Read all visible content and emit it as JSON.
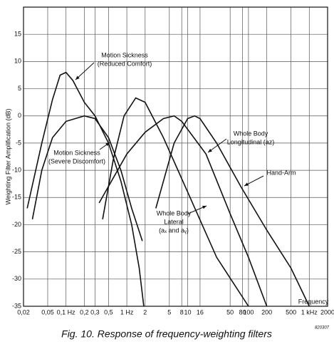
{
  "chart_data": {
    "type": "line",
    "xscale": "log",
    "xlabel": "Frequency",
    "ylabel": "Weighting Filter Amplification (dB)",
    "caption": "Fig. 10. Response of frequency-weighting filters",
    "code": "820307",
    "xlim": [
      0.02,
      2000
    ],
    "ylim": [
      -35,
      20
    ],
    "grid": true,
    "xticks": [
      {
        "value": 0.02,
        "label": "0,02"
      },
      {
        "value": 0.05,
        "label": "0,05"
      },
      {
        "value": 0.1,
        "label": "0,1 Hz"
      },
      {
        "value": 0.2,
        "label": "0,2"
      },
      {
        "value": 0.3,
        "label": "0,3"
      },
      {
        "value": 0.5,
        "label": "0,5"
      },
      {
        "value": 1,
        "label": "1 Hz"
      },
      2,
      5,
      8,
      10,
      16,
      50,
      80,
      100,
      200,
      500,
      {
        "value": 1000,
        "label": "1 kHz"
      },
      2000
    ],
    "yticks": [
      -35,
      -30,
      -25,
      -20,
      -15,
      -10,
      -5,
      0,
      5,
      10,
      15
    ],
    "series": [
      {
        "label": [
          "Motion Sickness",
          "(Reduced Comfort)"
        ],
        "color": "#111111",
        "x": [
          0.023,
          0.04,
          0.06,
          0.08,
          0.1,
          0.13,
          0.2,
          0.3,
          0.5,
          0.8,
          1.2,
          1.6,
          1.9
        ],
        "values": [
          -17,
          -5,
          3,
          7.5,
          8,
          6.5,
          2.5,
          0,
          -5,
          -12,
          -20,
          -28,
          -35
        ]
      },
      {
        "label": [
          "Motion Sickness",
          "(Severe Discomfort)"
        ],
        "color": "#111111",
        "x": [
          0.028,
          0.04,
          0.06,
          0.1,
          0.2,
          0.3,
          0.5,
          0.8,
          1.2,
          1.8
        ],
        "values": [
          -19,
          -10,
          -4,
          -1,
          0,
          -0.5,
          -4,
          -10,
          -17,
          -23
        ]
      },
      {
        "label": [
          "Whole Body",
          "Longitudinal (az)"
        ],
        "color": "#111111",
        "x": [
          0.35,
          1,
          2,
          4,
          6,
          8,
          20,
          50,
          100,
          200
        ],
        "values": [
          -16,
          -7,
          -3,
          -0.5,
          0,
          -1,
          -7,
          -18,
          -26,
          -35
        ]
      },
      {
        "label": [
          "Hand-Arm"
        ],
        "color": "#111111",
        "x": [
          3,
          6,
          10,
          13,
          16,
          30,
          75,
          200,
          500,
          1000
        ],
        "values": [
          -17,
          -5,
          -0.5,
          0,
          -0.5,
          -5,
          -13,
          -21,
          -28,
          -35
        ]
      },
      {
        "label": [
          "Whole Body",
          "Lateral",
          "(aₓ and aᵧ)"
        ],
        "color": "#111111",
        "x": [
          0.4,
          0.6,
          0.9,
          1.4,
          2,
          4,
          10,
          30,
          100
        ],
        "values": [
          -19,
          -8,
          0,
          3.3,
          2.5,
          -4,
          -14,
          -26,
          -35
        ]
      }
    ]
  }
}
